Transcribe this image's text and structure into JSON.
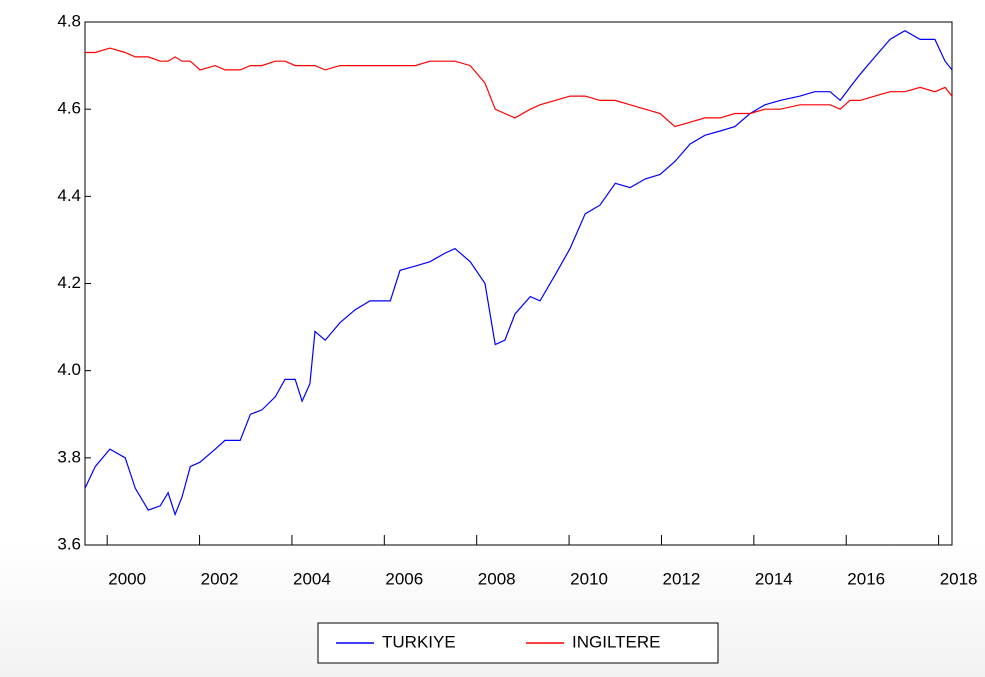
{
  "chart_data": {
    "type": "line",
    "x": [
      1999.52,
      1999.74,
      2000.06,
      2000.39,
      2000.61,
      2000.89,
      2001.15,
      2001.32,
      2001.47,
      2001.62,
      2001.8,
      2002.01,
      2002.34,
      2002.55,
      2002.88,
      2003.1,
      2003.35,
      2003.64,
      2003.85,
      2004.07,
      2004.22,
      2004.39,
      2004.5,
      2004.72,
      2005.04,
      2005.37,
      2005.69,
      2006.13,
      2006.34,
      2006.67,
      2006.99,
      2007.32,
      2007.53,
      2007.86,
      2008.18,
      2008.4,
      2008.61,
      2008.83,
      2009.16,
      2009.37,
      2009.7,
      2010.02,
      2010.35,
      2010.67,
      2011.0,
      2011.32,
      2011.65,
      2011.97,
      2012.29,
      2012.62,
      2012.94,
      2013.27,
      2013.59,
      2013.92,
      2014.24,
      2014.57,
      2015.0,
      2015.32,
      2015.65,
      2015.87,
      2016.08,
      2016.3,
      2016.62,
      2016.95,
      2017.27,
      2017.6,
      2017.92,
      2018.14,
      2018.29
    ],
    "series": [
      {
        "name": "TURKIYE",
        "color": "#0000ff",
        "values": [
          3.73,
          3.78,
          3.82,
          3.8,
          3.73,
          3.68,
          3.69,
          3.72,
          3.67,
          3.71,
          3.78,
          3.79,
          3.82,
          3.84,
          3.84,
          3.9,
          3.91,
          3.94,
          3.98,
          3.98,
          3.93,
          3.97,
          4.09,
          4.07,
          4.11,
          4.14,
          4.16,
          4.16,
          4.23,
          4.24,
          4.25,
          4.27,
          4.28,
          4.25,
          4.2,
          4.06,
          4.07,
          4.13,
          4.17,
          4.16,
          4.22,
          4.28,
          4.36,
          4.38,
          4.43,
          4.42,
          4.44,
          4.45,
          4.48,
          4.52,
          4.54,
          4.55,
          4.56,
          4.59,
          4.61,
          4.62,
          4.63,
          4.64,
          4.64,
          4.62,
          4.65,
          4.68,
          4.72,
          4.76,
          4.78,
          4.76,
          4.76,
          4.71,
          4.69
        ]
      },
      {
        "name": "INGILTERE",
        "color": "#ff0000",
        "values": [
          4.73,
          4.73,
          4.74,
          4.73,
          4.72,
          4.72,
          4.71,
          4.71,
          4.72,
          4.71,
          4.71,
          4.69,
          4.7,
          4.69,
          4.69,
          4.7,
          4.7,
          4.71,
          4.71,
          4.7,
          4.7,
          4.7,
          4.7,
          4.69,
          4.7,
          4.7,
          4.7,
          4.7,
          4.7,
          4.7,
          4.71,
          4.71,
          4.71,
          4.7,
          4.66,
          4.6,
          4.59,
          4.58,
          4.6,
          4.61,
          4.62,
          4.63,
          4.63,
          4.62,
          4.62,
          4.61,
          4.6,
          4.59,
          4.56,
          4.57,
          4.58,
          4.58,
          4.59,
          4.59,
          4.6,
          4.6,
          4.61,
          4.61,
          4.61,
          4.6,
          4.62,
          4.62,
          4.63,
          4.64,
          4.64,
          4.65,
          4.64,
          4.65,
          4.63
        ]
      }
    ],
    "xlim": [
      1999.52,
      2018.29
    ],
    "xticks": [
      2000,
      2002,
      2004,
      2006,
      2008,
      2010,
      2012,
      2014,
      2016,
      2018
    ],
    "ylim": [
      3.6,
      4.8
    ],
    "yticks": [
      3.6,
      3.8,
      {
        "value": 4,
        "label": "4.0"
      },
      4.2,
      4.4,
      4.6,
      4.8
    ],
    "legend": "bottom"
  }
}
